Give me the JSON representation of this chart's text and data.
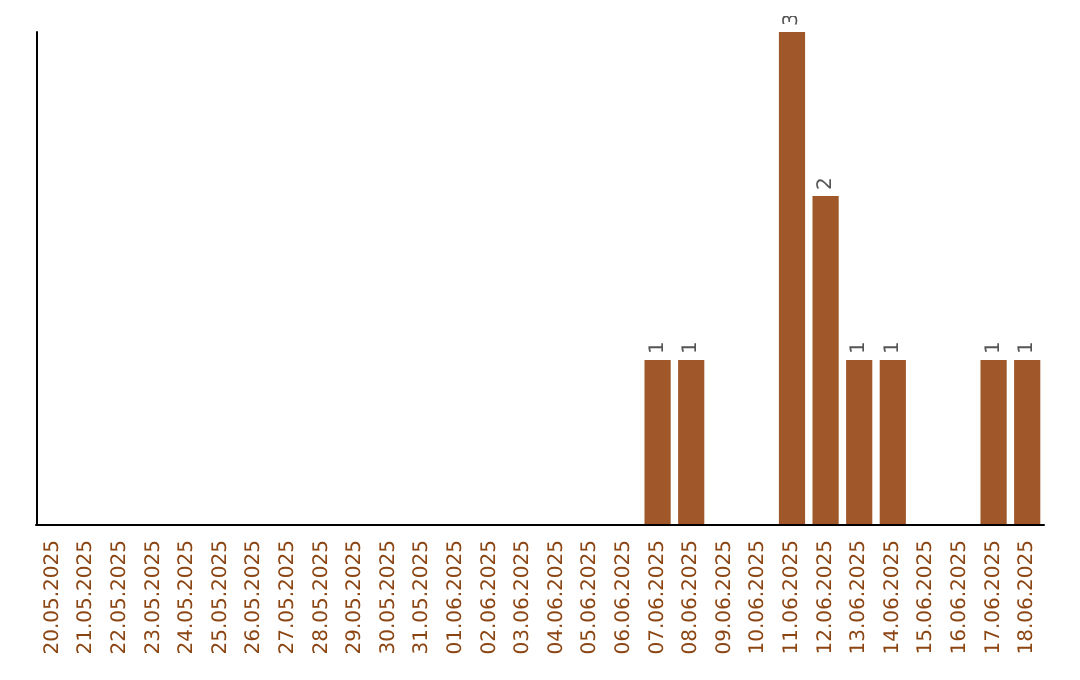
{
  "chart_data": {
    "type": "bar",
    "categories": [
      "20.05.2025",
      "21.05.2025",
      "22.05.2025",
      "23.05.2025",
      "24.05.2025",
      "25.05.2025",
      "26.05.2025",
      "27.05.2025",
      "28.05.2025",
      "29.05.2025",
      "30.05.2025",
      "31.05.2025",
      "01.06.2025",
      "02.06.2025",
      "03.06.2025",
      "04.06.2025",
      "05.06.2025",
      "06.06.2025",
      "07.06.2025",
      "08.06.2025",
      "09.06.2025",
      "10.06.2025",
      "11.06.2025",
      "12.06.2025",
      "13.06.2025",
      "14.06.2025",
      "15.06.2025",
      "16.06.2025",
      "17.06.2025",
      "18.06.2025"
    ],
    "values": [
      null,
      null,
      null,
      null,
      null,
      null,
      null,
      null,
      null,
      null,
      null,
      null,
      null,
      null,
      null,
      null,
      null,
      null,
      1,
      1,
      null,
      null,
      3,
      2,
      1,
      1,
      null,
      null,
      1,
      1
    ],
    "data_labels": true,
    "color": "#a0572a",
    "tick_labels": "x",
    "grid": false
  }
}
